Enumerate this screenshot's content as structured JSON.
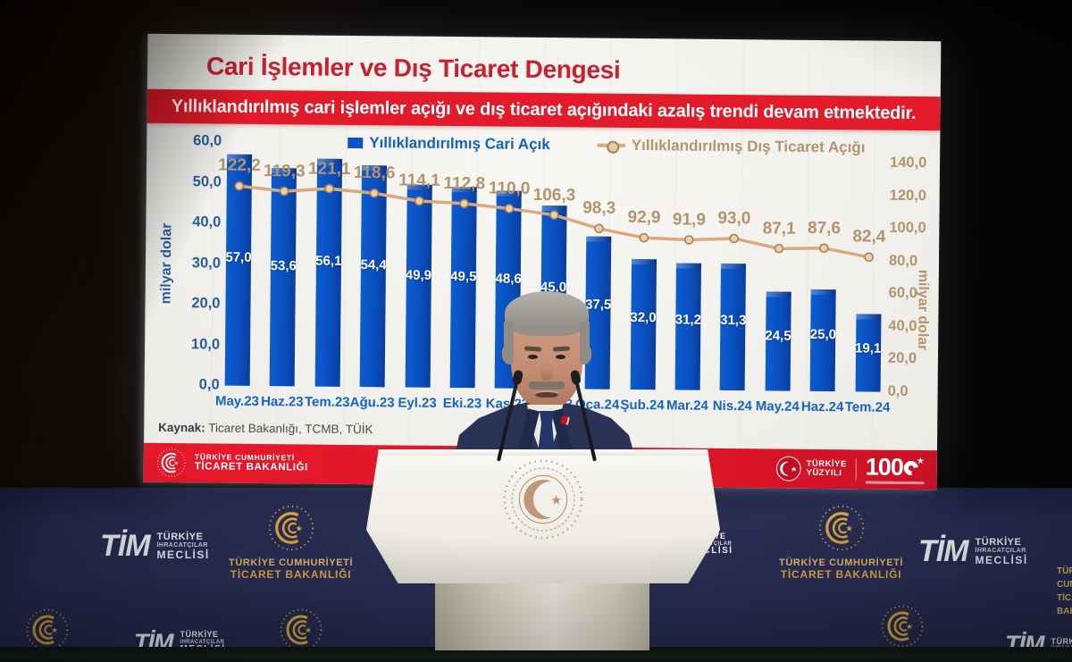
{
  "slide": {
    "title": "Cari İşlemler ve Dış Ticaret Dengesi",
    "subtitle": "Yıllıklandırılmış cari işlemler açığı ve dış ticaret açığındaki azalış trendi devam etmektedir.",
    "source_label": "Kaynak:",
    "source_text": " Ticaret Bakanlığı, TCMB, TÜİK"
  },
  "chart_data": {
    "type": "bar+line",
    "title": "Cari İşlemler ve Dış Ticaret Dengesi",
    "categories": [
      "May.23",
      "Haz.23",
      "Tem.23",
      "Ağu.23",
      "Eyl.23",
      "Eki.23",
      "Kas.23",
      "Ara.23",
      "Oca.24",
      "Şub.24",
      "Mar.24",
      "Nis.24",
      "May.24",
      "Haz.24",
      "Tem.24"
    ],
    "series": [
      {
        "name": "Yıllıklandırılmış Cari Açık",
        "type": "bar",
        "axis": "left",
        "color": "#0b52c4",
        "values": [
          57.0,
          53.6,
          56.1,
          54.4,
          49.9,
          49.5,
          48.6,
          45.0,
          37.5,
          32.0,
          31.2,
          31.3,
          24.5,
          25.0,
          19.1
        ],
        "value_labels": [
          "57,0",
          "53,6",
          "56,1",
          "54,4",
          "49,9",
          "49,5",
          "48,6",
          "45,0",
          "37,5",
          "32,0",
          "31,2",
          "31,3",
          "24,5",
          "25,0",
          "19,1"
        ]
      },
      {
        "name": "Yıllıklandırılmış Dış Ticaret Açığı",
        "type": "line",
        "axis": "right",
        "color": "#d9aa7d",
        "values": [
          122.2,
          119.3,
          121.1,
          118.6,
          114.1,
          112.8,
          110.0,
          106.3,
          98.3,
          92.9,
          91.9,
          93.0,
          87.1,
          87.6,
          82.4
        ],
        "value_labels": [
          "122,2",
          "119,3",
          "121,1",
          "118,6",
          "114,1",
          "112,8",
          "110,0",
          "106,3",
          "98,3",
          "92,9",
          "91,9",
          "93,0",
          "87,1",
          "87,6",
          "82,4"
        ]
      }
    ],
    "left_axis": {
      "label": "milyar dolar",
      "min": 0,
      "max": 60,
      "ticks": [
        "60,0",
        "50,0",
        "40,0",
        "30,0",
        "20,0",
        "10,0",
        "0,0"
      ]
    },
    "right_axis": {
      "label": "milyar dolar",
      "min": 0,
      "max": 140,
      "ticks": [
        "140,0",
        "120,0",
        "100,0",
        "80,0",
        "60,0",
        "40,0",
        "20,0",
        "0,0"
      ]
    },
    "grid": false,
    "legend_position": "top"
  },
  "footer": {
    "ministry_line1": "TÜRKİYE CUMHURİYETİ",
    "ministry_line2": "TİCARET BAKANLIĞI",
    "yuzyili_line1": "TÜRKİYE",
    "yuzyili_line2": "YÜZYILI",
    "centennial": "100"
  },
  "backdrop": {
    "tim": {
      "abbr": "TİM",
      "line1": "TÜRKİYE",
      "line2": "İHRACATÇILAR",
      "line3": "MECLİSİ"
    },
    "ministry": {
      "line1": "TÜRKİYE CUMHURİYETİ",
      "line2": "TİCARET BAKANLIĞI"
    }
  },
  "colors": {
    "bar_blue": "#0b52c4",
    "line_tan": "#d9aa7d",
    "banner_red": "#e21a2a",
    "title_red": "#c9202e",
    "wall_navy": "#272c52",
    "gold": "#d8a53c"
  }
}
